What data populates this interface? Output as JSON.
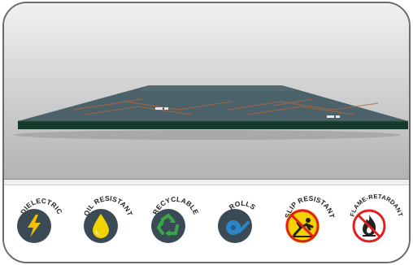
{
  "product": {
    "name": "rubber-mat",
    "colors": {
      "mat_top": "#4c626a",
      "mat_edge": "#153a2b",
      "pattern": "#b3653c"
    }
  },
  "features": [
    {
      "label": "DIELECTRIC",
      "icon": "lightning-bolt-icon",
      "bg": "#3b4b55",
      "accent": "#f2c200"
    },
    {
      "label": "OIL RESISTANT",
      "icon": "oil-drop-icon",
      "bg": "#3b4b55",
      "accent": "#f2d200"
    },
    {
      "label": "RECYCLABLE",
      "icon": "recycle-icon",
      "bg": "#3b4b55",
      "accent": "#3aa64a"
    },
    {
      "label": "ROLLS",
      "icon": "roll-icon",
      "bg": "#3b4b55",
      "accent": "#2a86c6"
    },
    {
      "label": "SLIP RESISTANT",
      "icon": "no-slip-icon",
      "bg": "#f2d200",
      "accent": "#e02020"
    },
    {
      "label": "FLAME-RETARDANT",
      "icon": "no-fire-icon",
      "bg": "#ffffff",
      "accent": "#e02020"
    }
  ]
}
